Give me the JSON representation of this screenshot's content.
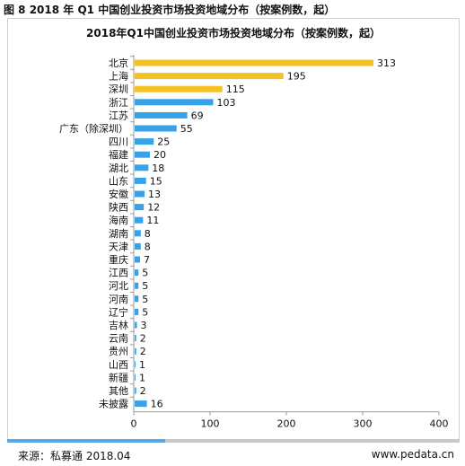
{
  "figure_label": "图 8 2018 年 Q1 中国创业投资市场投资地域分布（按案例数，起）",
  "footer": {
    "source": "来源：私募通 2018.04",
    "website": "www.pedata.cn"
  },
  "colors": {
    "highlight": "#f5c226",
    "normal": "#39a2e6",
    "axis": "#9a9a9a"
  },
  "chart_data": {
    "type": "bar",
    "orientation": "horizontal",
    "title": "2018年Q1中国创业投资市场投资地域分布（按案例数，起）",
    "categories": [
      "北京",
      "上海",
      "深圳",
      "浙江",
      "江苏",
      "广东（除深圳）",
      "四川",
      "福建",
      "湖北",
      "山东",
      "安徽",
      "陕西",
      "海南",
      "湖南",
      "天津",
      "重庆",
      "江西",
      "河北",
      "河南",
      "辽宁",
      "吉林",
      "云南",
      "贵州",
      "山西",
      "新疆",
      "其他",
      "未披露"
    ],
    "values": [
      313,
      195,
      115,
      103,
      69,
      55,
      25,
      20,
      18,
      15,
      13,
      12,
      11,
      8,
      8,
      7,
      5,
      5,
      5,
      5,
      3,
      2,
      2,
      1,
      1,
      2,
      16
    ],
    "highlighted_categories": [
      "北京",
      "上海",
      "深圳"
    ],
    "xlim": [
      0,
      400
    ],
    "xticks": [
      0,
      100,
      200,
      300,
      400
    ],
    "xlabel": "",
    "ylabel": "",
    "grid": false,
    "legend": "none"
  }
}
